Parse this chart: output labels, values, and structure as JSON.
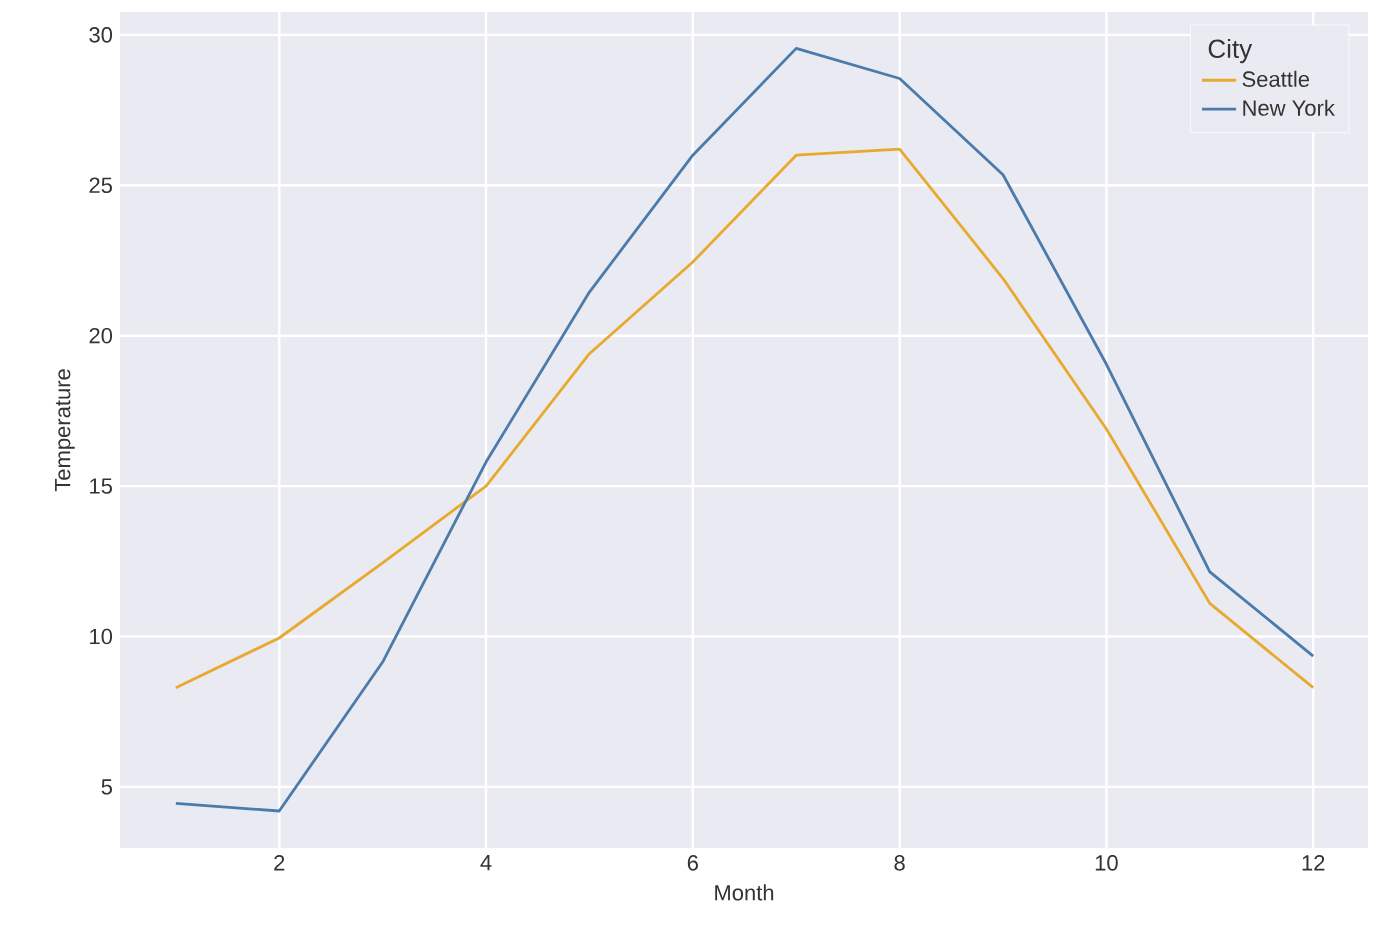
{
  "chart_data": {
    "type": "line",
    "xlabel": "Month",
    "ylabel": "Temperature",
    "legend_title": "City",
    "x": [
      1,
      2,
      3,
      4,
      5,
      6,
      7,
      8,
      9,
      10,
      11,
      12
    ],
    "series": [
      {
        "name": "Seattle",
        "color": "#e8a92f",
        "values": [
          8.3,
          9.95,
          12.45,
          15.0,
          19.4,
          22.45,
          26.0,
          26.2,
          21.9,
          16.9,
          11.1,
          8.3
        ]
      },
      {
        "name": "New York",
        "color": "#4a7bab",
        "values": [
          4.45,
          4.2,
          9.15,
          15.8,
          21.45,
          26.0,
          29.55,
          28.55,
          25.35,
          19.05,
          12.15,
          9.35
        ]
      }
    ],
    "xlim": [
      0.46,
      12.53
    ],
    "ylim": [
      2.97,
      30.76
    ],
    "xticks": [
      2,
      4,
      6,
      8,
      10,
      12
    ],
    "yticks": [
      5,
      10,
      15,
      20,
      25,
      30
    ],
    "grid": true,
    "legend": "top right",
    "marker": "none",
    "line_style": "solid"
  }
}
